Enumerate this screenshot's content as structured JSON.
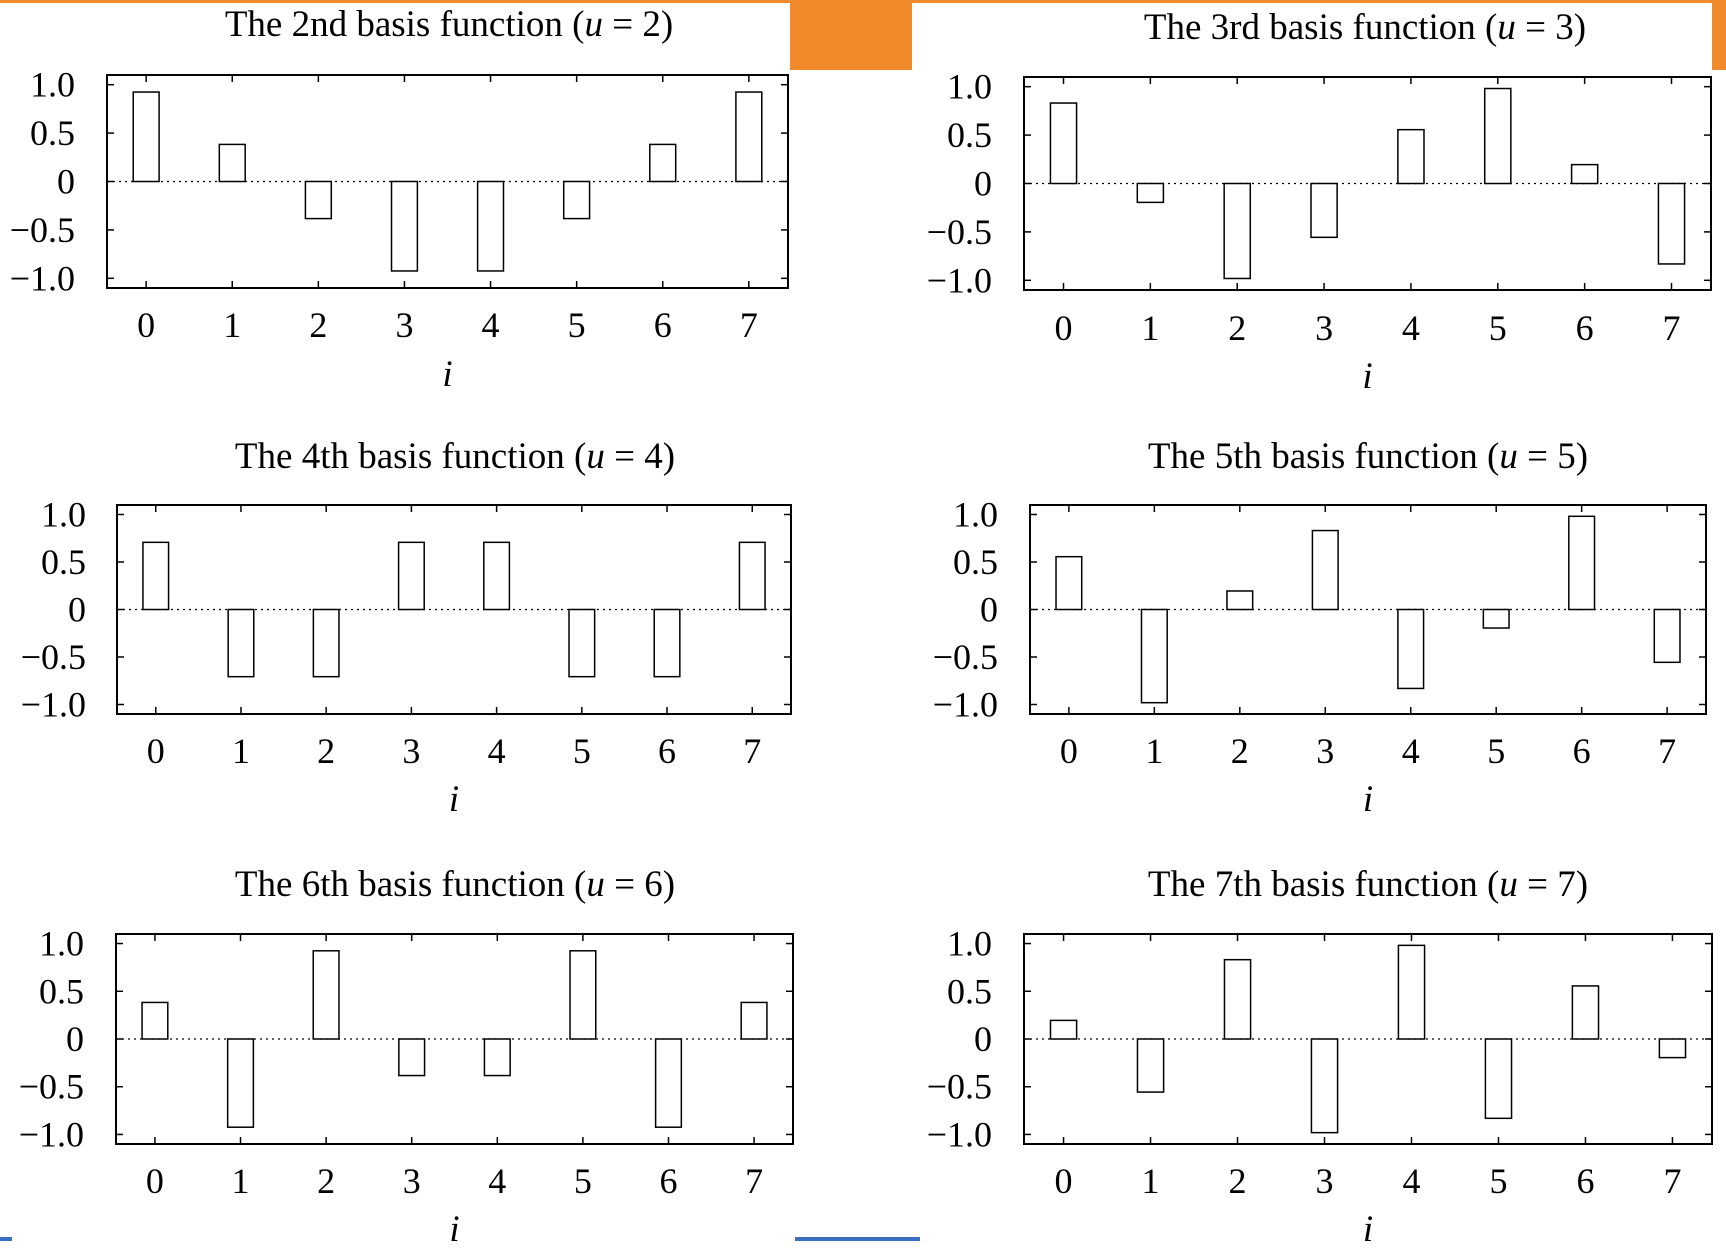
{
  "colors": {
    "accent_orange": "#f08a2a",
    "accent_blue": "#3a6fc4",
    "bar_fill": "#ffffff",
    "bar_stroke": "#000000"
  },
  "chart_data": [
    {
      "type": "bar",
      "title_prefix": "The 2nd basis function (",
      "title_var": "u",
      "title_suffix": " = 2)",
      "categories": [
        "0",
        "1",
        "2",
        "3",
        "4",
        "5",
        "6",
        "7"
      ],
      "values": [
        0.924,
        0.383,
        -0.383,
        -0.924,
        -0.924,
        -0.383,
        0.383,
        0.924
      ],
      "xlabel": "i",
      "ylim": [
        -1.1,
        1.1
      ],
      "yticks": [
        1.0,
        0.5,
        0,
        -0.5,
        -1.0
      ],
      "ytick_labels": [
        "1.0",
        "0.5",
        "0",
        "−0.5",
        "−1.0"
      ],
      "grid": false
    },
    {
      "type": "bar",
      "title_prefix": "The 3rd basis function (",
      "title_var": "u",
      "title_suffix": " = 3)",
      "categories": [
        "0",
        "1",
        "2",
        "3",
        "4",
        "5",
        "6",
        "7"
      ],
      "values": [
        0.831,
        -0.195,
        -0.981,
        -0.556,
        0.556,
        0.981,
        0.195,
        -0.831
      ],
      "xlabel": "i",
      "ylim": [
        -1.1,
        1.1
      ],
      "yticks": [
        1.0,
        0.5,
        0,
        -0.5,
        -1.0
      ],
      "ytick_labels": [
        "1.0",
        "0.5",
        "0",
        "−0.5",
        "−1.0"
      ],
      "grid": false
    },
    {
      "type": "bar",
      "title_prefix": "The 4th basis function (",
      "title_var": "u",
      "title_suffix": " = 4)",
      "categories": [
        "0",
        "1",
        "2",
        "3",
        "4",
        "5",
        "6",
        "7"
      ],
      "values": [
        0.707,
        -0.707,
        -0.707,
        0.707,
        0.707,
        -0.707,
        -0.707,
        0.707
      ],
      "xlabel": "i",
      "ylim": [
        -1.1,
        1.1
      ],
      "yticks": [
        1.0,
        0.5,
        0,
        -0.5,
        -1.0
      ],
      "ytick_labels": [
        "1.0",
        "0.5",
        "0",
        "−0.5",
        "−1.0"
      ],
      "grid": false
    },
    {
      "type": "bar",
      "title_prefix": "The 5th basis function (",
      "title_var": "u",
      "title_suffix": " = 5)",
      "categories": [
        "0",
        "1",
        "2",
        "3",
        "4",
        "5",
        "6",
        "7"
      ],
      "values": [
        0.556,
        -0.981,
        0.195,
        0.831,
        -0.831,
        -0.195,
        0.981,
        -0.556
      ],
      "xlabel": "i",
      "ylim": [
        -1.1,
        1.1
      ],
      "yticks": [
        1.0,
        0.5,
        0,
        -0.5,
        -1.0
      ],
      "ytick_labels": [
        "1.0",
        "0.5",
        "0",
        "−0.5",
        "−1.0"
      ],
      "grid": false
    },
    {
      "type": "bar",
      "title_prefix": "The 6th basis function (",
      "title_var": "u",
      "title_suffix": " = 6)",
      "categories": [
        "0",
        "1",
        "2",
        "3",
        "4",
        "5",
        "6",
        "7"
      ],
      "values": [
        0.383,
        -0.924,
        0.924,
        -0.383,
        -0.383,
        0.924,
        -0.924,
        0.383
      ],
      "xlabel": "i",
      "ylim": [
        -1.1,
        1.1
      ],
      "yticks": [
        1.0,
        0.5,
        0,
        -0.5,
        -1.0
      ],
      "ytick_labels": [
        "1.0",
        "0.5",
        "0",
        "−0.5",
        "−1.0"
      ],
      "grid": false
    },
    {
      "type": "bar",
      "title_prefix": "The 7th basis function (",
      "title_var": "u",
      "title_suffix": " = 7)",
      "categories": [
        "0",
        "1",
        "2",
        "3",
        "4",
        "5",
        "6",
        "7"
      ],
      "values": [
        0.195,
        -0.556,
        0.831,
        -0.981,
        0.981,
        -0.831,
        0.556,
        -0.195
      ],
      "xlabel": "i",
      "ylim": [
        -1.1,
        1.1
      ],
      "yticks": [
        1.0,
        0.5,
        0,
        -0.5,
        -1.0
      ],
      "ytick_labels": [
        "1.0",
        "0.5",
        "0",
        "−0.5",
        "−1.0"
      ],
      "grid": false
    }
  ]
}
